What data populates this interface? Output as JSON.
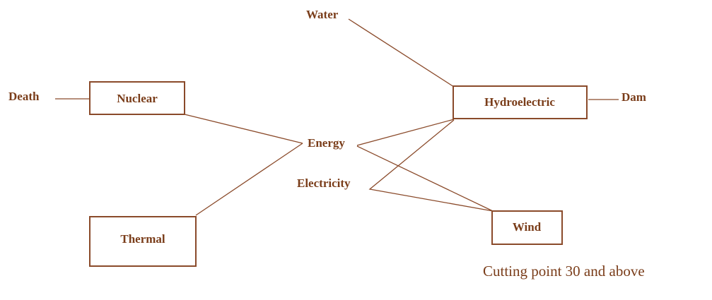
{
  "nodes": [
    {
      "label": "Water"
    },
    {
      "label": "Death"
    },
    {
      "label": "Nuclear"
    },
    {
      "label": "Hydroelectric"
    },
    {
      "label": "Dam"
    },
    {
      "label": "Energy"
    },
    {
      "label": "Electricity"
    },
    {
      "label": "Thermal"
    },
    {
      "label": "Wind"
    }
  ],
  "note": "Cutting point 30 and above"
}
